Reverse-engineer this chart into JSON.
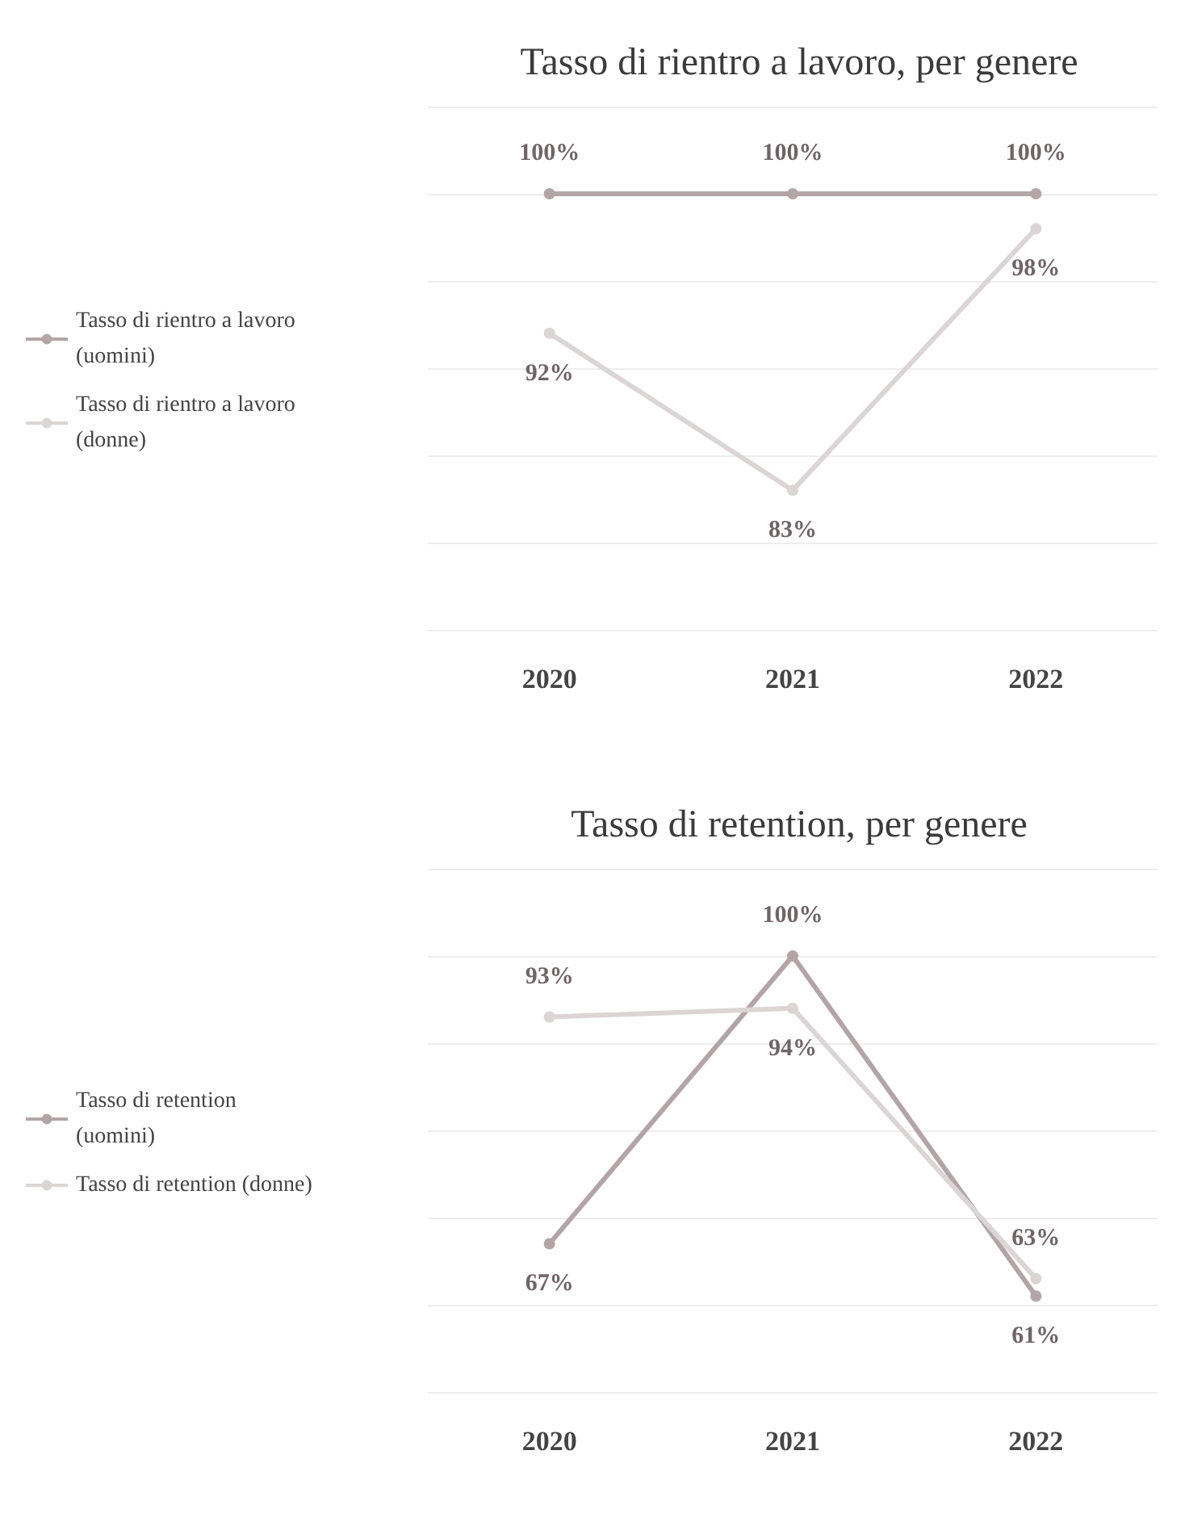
{
  "chart_data": [
    {
      "type": "line",
      "title": "Tasso di rientro a lavoro, per genere",
      "categories": [
        "2020",
        "2021",
        "2022"
      ],
      "series": [
        {
          "name": "Tasso di rientro a lavoro (uomini)",
          "color": "#b3a5a7",
          "values": [
            100,
            100,
            100
          ],
          "value_labels": [
            "100%",
            "100%",
            "100%"
          ]
        },
        {
          "name": "Tasso di rientro a lavoro (donne)",
          "color": "#dbd5d5",
          "values": [
            92,
            83,
            98
          ],
          "value_labels": [
            "92%",
            "83%",
            "98%"
          ]
        }
      ],
      "tick_labels": "x",
      "grid": "y",
      "legend": "left",
      "marker": "circle"
    },
    {
      "type": "line",
      "title": "Tasso di retention, per genere",
      "categories": [
        "2020",
        "2021",
        "2022"
      ],
      "series": [
        {
          "name": "Tasso di retention (uomini)",
          "color": "#b3a5a7",
          "values": [
            67,
            100,
            61
          ],
          "value_labels": [
            "67%",
            "100%",
            "61%"
          ]
        },
        {
          "name": "Tasso di retention (donne)",
          "color": "#dbd5d5",
          "values": [
            93,
            94,
            63
          ],
          "value_labels": [
            "93%",
            "94%",
            "63%"
          ]
        }
      ],
      "tick_labels": "x",
      "grid": "y",
      "legend": "left",
      "marker": "circle"
    }
  ]
}
